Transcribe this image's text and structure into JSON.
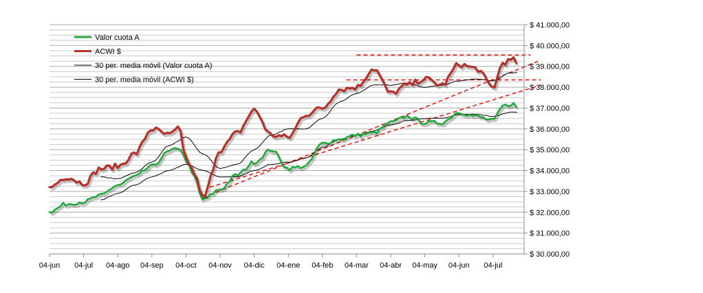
{
  "chart_data": {
    "type": "line",
    "title": "",
    "xlabel": "",
    "ylabel": "",
    "ylim": [
      30000,
      41000
    ],
    "y_tick_labels": [
      "$ 30.000,00",
      "$ 31.000,00",
      "$ 32.000,00",
      "$ 33.000,00",
      "$ 34.000,00",
      "$ 35.000,00",
      "$ 36.000,00",
      "$ 37.000,00",
      "$ 38.000,00",
      "$ 39.000,00",
      "$ 40.000,00",
      "$ 41.000,00"
    ],
    "y_tick_values": [
      30000,
      31000,
      32000,
      33000,
      34000,
      35000,
      36000,
      37000,
      38000,
      39000,
      40000,
      41000
    ],
    "x_tick_labels": [
      "04-jun",
      "04-jul",
      "04-ago",
      "04-sep",
      "04-oct",
      "04-nov",
      "04-dic",
      "04-ene",
      "04-feb",
      "04-mar",
      "04-abr",
      "04-may",
      "04-jun",
      "04-jul"
    ],
    "x_range_months": [
      0,
      13.7
    ],
    "grid": "horizontal",
    "legend_position": "top-left",
    "legend": [
      {
        "label": "Valor cuota A",
        "color": "#22a83a"
      },
      {
        "label": "ACWI $",
        "color": "#b5312a"
      },
      {
        "label": "30 per. media móvil (Valor cuota A)",
        "color": "#000000"
      },
      {
        "label": "30 per. media móvil (ACWI $)",
        "color": "#000000"
      }
    ],
    "series": [
      {
        "name": "Valor cuota A",
        "color": "#22a83a",
        "x": [
          0,
          0.5,
          1,
          1.5,
          2,
          2.5,
          3,
          3.5,
          3.8,
          4,
          4.2,
          4.5,
          5,
          5.5,
          6,
          6.5,
          7,
          7.5,
          8,
          8.5,
          9,
          9.5,
          10,
          10.5,
          11,
          11.5,
          12,
          12.5,
          13,
          13.3,
          13.6,
          13.7
        ],
        "y": [
          32000,
          32400,
          32500,
          32800,
          33300,
          33700,
          34200,
          34900,
          35100,
          34500,
          33800,
          32600,
          33100,
          33800,
          34400,
          35000,
          34100,
          34200,
          35300,
          35500,
          35700,
          35800,
          36300,
          36600,
          36300,
          36300,
          36800,
          36600,
          36400,
          37100,
          37200,
          37000
        ]
      },
      {
        "name": "ACWI $",
        "color": "#b5312a",
        "x": [
          0,
          0.5,
          1,
          1.5,
          2,
          2.5,
          3,
          3.5,
          3.8,
          4,
          4.2,
          4.5,
          5,
          5.5,
          6,
          6.5,
          7,
          7.5,
          8,
          8.5,
          9,
          9.5,
          10,
          10.5,
          11,
          11.5,
          12,
          12.5,
          13,
          13.3,
          13.6,
          13.7
        ],
        "y": [
          33200,
          33700,
          33400,
          34100,
          34200,
          34800,
          36000,
          35700,
          36000,
          34600,
          34000,
          32700,
          35000,
          35800,
          36900,
          35700,
          35600,
          36700,
          37000,
          37900,
          38000,
          38900,
          37700,
          38100,
          38400,
          38100,
          39100,
          38900,
          38000,
          39200,
          39300,
          39200
        ]
      },
      {
        "name": "30 per. media móvil (Valor cuota A)",
        "color": "#000000",
        "x": [
          1.5,
          2,
          2.5,
          3,
          3.5,
          4,
          4.5,
          5,
          5.5,
          6,
          6.5,
          7,
          7.5,
          8,
          8.5,
          9,
          9.5,
          10,
          10.5,
          11,
          11.5,
          12,
          12.5,
          13,
          13.5,
          13.7
        ],
        "y": [
          32600,
          32900,
          33300,
          33700,
          34000,
          34300,
          34000,
          33700,
          33700,
          34000,
          34300,
          34400,
          34600,
          35100,
          35500,
          35700,
          35900,
          36200,
          36400,
          36500,
          36500,
          36700,
          36700,
          36600,
          36800,
          36800
        ]
      },
      {
        "name": "30 per. media móvil (ACWI $)",
        "color": "#000000",
        "x": [
          1.5,
          2,
          2.5,
          3,
          3.5,
          4,
          4.5,
          5,
          5.5,
          6,
          6.5,
          7,
          7.5,
          8,
          8.5,
          9,
          9.5,
          10,
          10.5,
          11,
          11.5,
          12,
          12.5,
          13,
          13.5,
          13.7
        ],
        "y": [
          33700,
          33600,
          33900,
          34400,
          35200,
          35600,
          34800,
          34100,
          34300,
          35000,
          35700,
          36000,
          36000,
          36500,
          37300,
          37700,
          38100,
          38100,
          38200,
          38000,
          38100,
          38300,
          38400,
          38300,
          38700,
          38700
        ]
      }
    ],
    "annotations": [
      {
        "kind": "resistance",
        "x": [
          9,
          14.1
        ],
        "y": [
          39550,
          39550
        ],
        "color": "#e0201a",
        "dash": true
      },
      {
        "kind": "resistance",
        "x": [
          8.7,
          14.4
        ],
        "y": [
          38350,
          38350
        ],
        "color": "#e0201a",
        "dash": true
      },
      {
        "kind": "trend",
        "x": [
          4.5,
          14.4
        ],
        "y": [
          32700,
          39300
        ],
        "color": "#e0201a",
        "dash": true
      },
      {
        "kind": "trend",
        "x": [
          4.7,
          14.4
        ],
        "y": [
          33200,
          38100
        ],
        "color": "#e0201a",
        "dash": true
      }
    ]
  }
}
